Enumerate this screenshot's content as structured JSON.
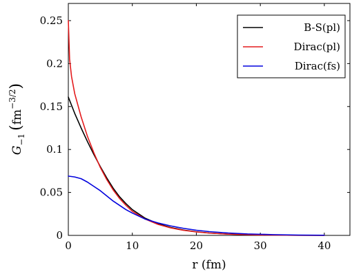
{
  "chart_data": {
    "type": "line",
    "xlabel": "r (fm)",
    "ylabel_main": "G",
    "ylabel_sub": "−1",
    "ylabel_unit": "fm",
    "ylabel_unit_exp": "−3/2",
    "xlim": [
      0,
      44
    ],
    "ylim": [
      0,
      0.27
    ],
    "x_ticks": [
      0,
      10,
      20,
      30,
      40
    ],
    "x_tick_labels": [
      "0",
      "10",
      "20",
      "30",
      "40"
    ],
    "y_ticks": [
      0,
      0.05,
      0.1,
      0.15,
      0.2,
      0.25
    ],
    "y_tick_labels": [
      "0",
      "0.05",
      "0.1",
      "0.15",
      "0.2",
      "0.25"
    ],
    "grid": false,
    "legend_position": "top-right",
    "series": [
      {
        "name": "B-S(pl)",
        "color": "#000000",
        "x": [
          0,
          1,
          2,
          3,
          4,
          5,
          6,
          7,
          8,
          9,
          10,
          12,
          14,
          16,
          18,
          20,
          22,
          25,
          28,
          32,
          36,
          40
        ],
        "y": [
          0.161,
          0.142,
          0.125,
          0.109,
          0.094,
          0.08,
          0.067,
          0.055,
          0.045,
          0.037,
          0.03,
          0.02,
          0.0135,
          0.0092,
          0.0062,
          0.0042,
          0.0028,
          0.0015,
          0.0008,
          0.0003,
          0.0001,
          0.0
        ]
      },
      {
        "name": "Dirac(pl)",
        "color": "#e31a1c",
        "x": [
          0,
          0.2,
          0.5,
          1,
          2,
          3,
          4,
          5,
          6,
          7,
          8,
          9,
          10,
          12,
          14,
          16,
          18,
          20,
          22,
          25,
          28,
          32,
          36,
          40
        ],
        "y": [
          0.25,
          0.205,
          0.185,
          0.165,
          0.138,
          0.115,
          0.096,
          0.079,
          0.065,
          0.053,
          0.043,
          0.035,
          0.028,
          0.019,
          0.0128,
          0.0087,
          0.0059,
          0.004,
          0.0027,
          0.0014,
          0.0008,
          0.0003,
          0.0001,
          0.0
        ]
      },
      {
        "name": "Dirac(fs)",
        "color": "#0000dd",
        "x": [
          0,
          1,
          2,
          3,
          4,
          5,
          6,
          7,
          8,
          9,
          10,
          12,
          14,
          16,
          18,
          20,
          22,
          25,
          28,
          32,
          36,
          40
        ],
        "y": [
          0.069,
          0.068,
          0.066,
          0.062,
          0.057,
          0.052,
          0.046,
          0.04,
          0.035,
          0.03,
          0.026,
          0.019,
          0.0145,
          0.011,
          0.0082,
          0.006,
          0.0044,
          0.0028,
          0.0017,
          0.0009,
          0.0004,
          0.0002
        ]
      }
    ]
  }
}
